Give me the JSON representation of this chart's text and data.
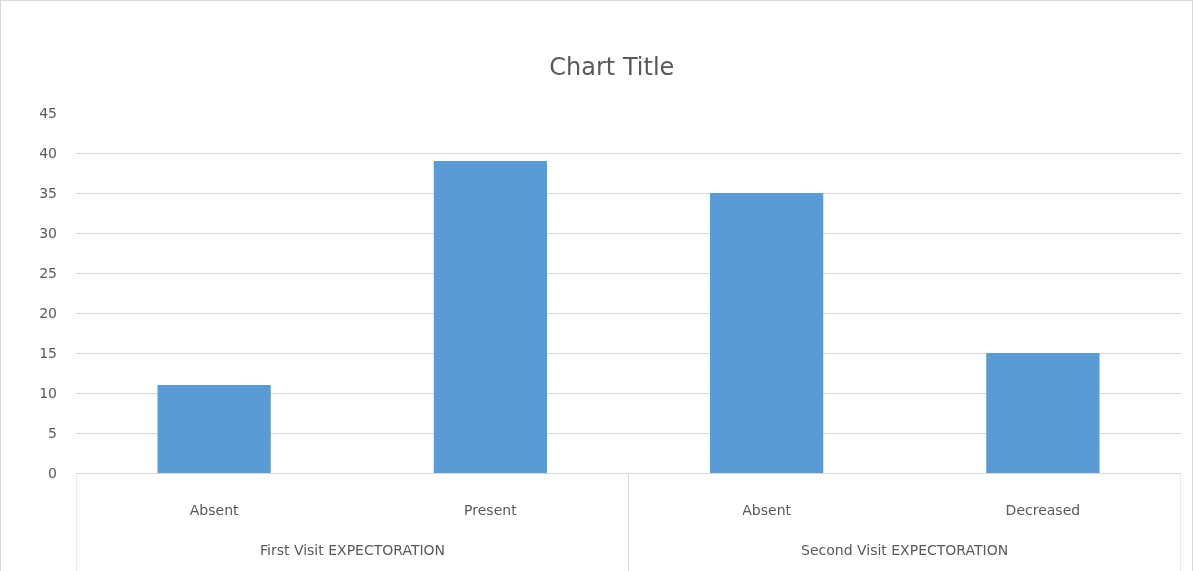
{
  "chart_data": {
    "type": "bar",
    "title": "Chart Title",
    "categories": [
      "Absent",
      "Present",
      "Absent",
      "Decreased"
    ],
    "values": [
      11,
      39,
      35,
      15
    ],
    "color": "#5b9bd5",
    "ylim": [
      0,
      45
    ],
    "yticks": [
      0,
      5,
      10,
      15,
      20,
      25,
      30,
      35,
      40,
      45
    ],
    "grid": "y",
    "annotations": [
      "First Visit EXPECTORATION",
      "Second Visit EXPECTORATION"
    ]
  }
}
